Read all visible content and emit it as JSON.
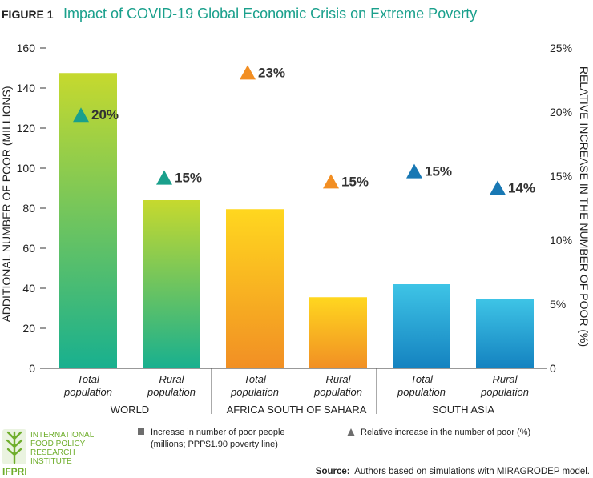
{
  "figure": {
    "label": "FIGURE 1",
    "title": "Impact of COVID-19 Global Economic Crisis on Extreme Poverty"
  },
  "chart_data": {
    "type": "bar",
    "title": "Impact of COVID-19 Global Economic Crisis on Extreme Poverty",
    "ylabel": "ADDITIONAL NUMBER OF POOR (MILLIONS)",
    "y2label": "RELATIVE INCREASE IN THE NUMBER OF POOR (%)",
    "ylim": [
      0,
      160
    ],
    "y2lim": [
      0,
      25
    ],
    "yticks": [
      0,
      20,
      40,
      60,
      80,
      100,
      120,
      140,
      160
    ],
    "y2ticks": [
      "0",
      "5%",
      "10%",
      "15%",
      "20%",
      "25%"
    ],
    "groups": [
      {
        "name": "WORLD",
        "color_top": "#c6d92e",
        "color_bottom": "#18b08f",
        "marker_color": "#1aa08c"
      },
      {
        "name": "AFRICA SOUTH OF SAHARA",
        "color_top": "#ffd71f",
        "color_bottom": "#f18f24",
        "marker_color": "#f28e22"
      },
      {
        "name": "SOUTH ASIA",
        "color_top": "#3ec4e6",
        "color_bottom": "#1482c0",
        "marker_color": "#1878b4"
      }
    ],
    "categories": [
      {
        "line1": "Total",
        "line2": "population"
      },
      {
        "line1": "Rural",
        "line2": "population"
      },
      {
        "line1": "Total",
        "line2": "population"
      },
      {
        "line1": "Rural",
        "line2": "population"
      },
      {
        "line1": "Total",
        "line2": "population"
      },
      {
        "line1": "Rural",
        "line2": "population"
      }
    ],
    "series": [
      {
        "name": "Increase in number of poor people (millions; PPP$1.90 poverty line)",
        "axis": "left",
        "values": [
          147.5,
          84,
          79.5,
          35.5,
          42,
          34.5
        ]
      },
      {
        "name": "Relative increase in the number of poor (%)",
        "axis": "right",
        "values": [
          19.8,
          14.9,
          23.1,
          14.6,
          15.4,
          14.1
        ],
        "labels": [
          "20%",
          "15%",
          "23%",
          "15%",
          "15%",
          "14%"
        ]
      }
    ]
  },
  "legend": {
    "bar_line1": "Increase in number of poor people",
    "bar_line2": "(millions; PPP$1.90 poverty line)",
    "triangle": "Relative increase in the number of poor (%)",
    "bar_color": "#6d6d6d",
    "triangle_color": "#6d6d6d"
  },
  "logo": {
    "lines": [
      "INTERNATIONAL",
      "FOOD POLICY",
      "RESEARCH",
      "INSTITUTE"
    ],
    "acronym": "IFPRI",
    "color": "#6fae2c"
  },
  "source": {
    "label": "Source:",
    "text": "Authors based on simulations with MIRAGRODEP model."
  }
}
